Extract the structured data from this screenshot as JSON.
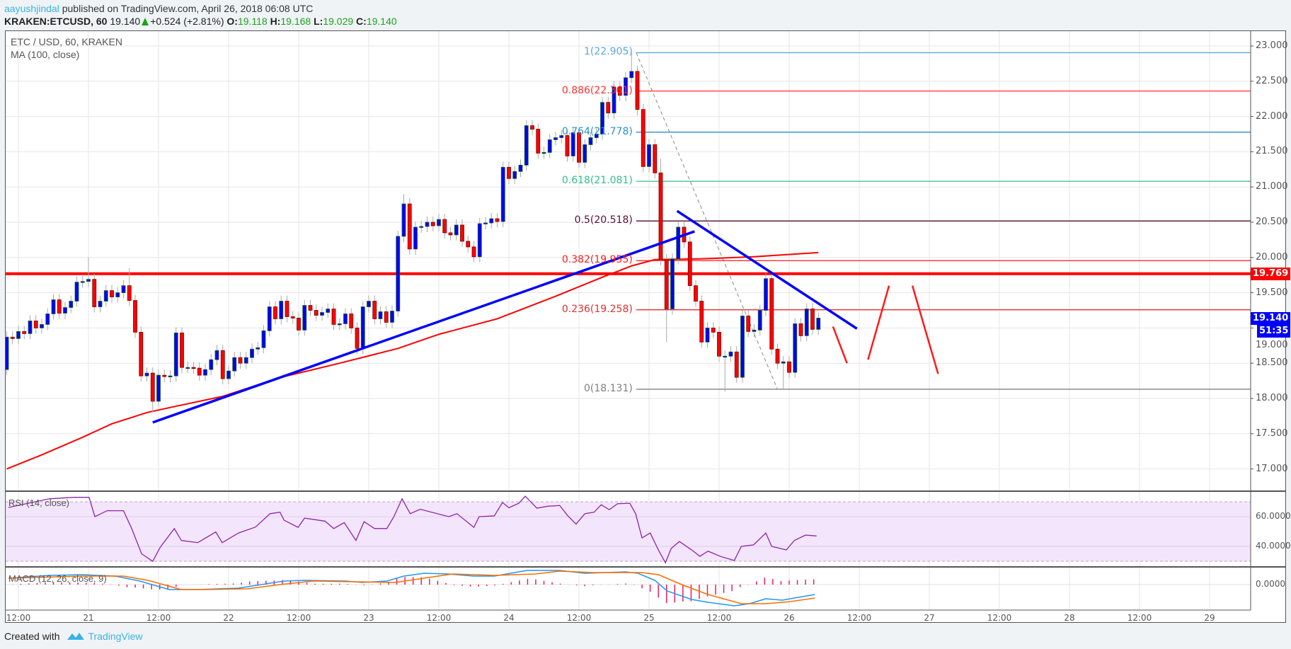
{
  "header": {
    "author": "aayushjindal",
    "published_text": "published on TradingView.com, April 26, 2018 06:08 UTC",
    "symbol": "KRAKEN:ETCUSD, 60",
    "last": "19.140",
    "change": "+0.524 (+2.81%)",
    "o_label": "O:",
    "o": "19.118",
    "h_label": "H:",
    "h": "19.168",
    "l_label": "L:",
    "l": "19.029",
    "c_label": "C:",
    "c": "19.140"
  },
  "legend": {
    "title": "ETC / USD, 60, KRAKEN",
    "ma": "MA (100, close)",
    "rsi": "RSI (14, close)",
    "macd": "MACD (12, 26, close, 9)"
  },
  "tags": {
    "resistance": "19.769",
    "last_price": "19.140",
    "countdown": "51:35"
  },
  "footer": {
    "created_with": "Created with",
    "brand": "TradingView"
  },
  "colors": {
    "up": "#0000ff",
    "down": "#ff0000",
    "ma": "#ff0000",
    "trend": "#0000ff",
    "rsi": "#8e24aa",
    "macd": "#2196f3",
    "signal": "#ff6d00",
    "hist": "#e91e63"
  },
  "chart_data": {
    "type": "candlestick",
    "time_unit": "hours from Apr 20 12:00",
    "price_axis": {
      "range": [
        16.6,
        23.2
      ],
      "ticks": [
        "23.000",
        "22.500",
        "22.000",
        "21.500",
        "21.000",
        "20.500",
        "20.000",
        "19.500",
        "19.000",
        "18.500",
        "18.000",
        "17.500",
        "17.000"
      ]
    },
    "x_ticks": [
      "12:00",
      "21",
      "12:00",
      "22",
      "12:00",
      "23",
      "12:00",
      "24",
      "12:00",
      "25",
      "12:00",
      "26",
      "12:00",
      "27",
      "12:00",
      "28",
      "12:00",
      "29"
    ],
    "candles": {
      "start_hour": -2,
      "first_open": 18.41,
      "closes": [
        18.87,
        18.85,
        18.95,
        18.92,
        19.1,
        19.0,
        19.05,
        19.2,
        19.4,
        19.21,
        19.29,
        19.38,
        19.65,
        19.66,
        19.69,
        19.3,
        19.38,
        19.53,
        19.44,
        19.5,
        19.6,
        19.39,
        18.94,
        18.32,
        18.36,
        17.96,
        18.33,
        18.31,
        18.32,
        18.93,
        18.44,
        18.44,
        18.43,
        18.33,
        18.41,
        18.55,
        18.68,
        18.28,
        18.39,
        18.58,
        18.5,
        18.58,
        18.7,
        18.72,
        18.96,
        19.3,
        19.13,
        19.38,
        19.16,
        19.14,
        18.97,
        19.32,
        19.25,
        19.18,
        19.22,
        19.27,
        19.05,
        19.06,
        19.2,
        19.0,
        18.71,
        19.3,
        19.38,
        19.13,
        19.23,
        19.08,
        19.24,
        20.3,
        20.76,
        20.12,
        20.43,
        20.44,
        20.5,
        20.45,
        20.54,
        20.35,
        20.32,
        20.46,
        20.23,
        20.15,
        20.01,
        20.48,
        20.49,
        20.55,
        20.51,
        21.28,
        21.12,
        21.22,
        21.31,
        21.87,
        21.82,
        21.48,
        21.49,
        21.67,
        21.7,
        21.73,
        21.44,
        21.77,
        21.35,
        21.6,
        21.7,
        21.75,
        22.2,
        22.05,
        22.42,
        22.3,
        22.55,
        22.64,
        22.1,
        21.29,
        21.6,
        21.2,
        19.97,
        19.27,
        19.98,
        20.43,
        20.22,
        19.6,
        19.38,
        18.8,
        19.0,
        18.94,
        18.6,
        18.6,
        18.66,
        18.3,
        19.17,
        18.95,
        18.97,
        19.25,
        19.7,
        18.7,
        18.5,
        18.52,
        18.37,
        19.06,
        18.89,
        19.27,
        18.98,
        19.14
      ],
      "high_overrides": {
        "12": 20.0,
        "19": 19.85,
        "66": 20.9,
        "105": 22.905,
        "110": 21.4
      },
      "low_overrides": {
        "23": 17.8,
        "111": 18.8,
        "121": 18.1,
        "131": 18.131
      }
    },
    "ma100": [
      [
        -2,
        17.0
      ],
      [
        4,
        17.2
      ],
      [
        11,
        17.45
      ],
      [
        16,
        17.64
      ],
      [
        22,
        17.8
      ],
      [
        27,
        17.89
      ],
      [
        35,
        18.03
      ],
      [
        45,
        18.3
      ],
      [
        55,
        18.5
      ],
      [
        65,
        18.71
      ],
      [
        72,
        18.91
      ],
      [
        82,
        19.13
      ],
      [
        92,
        19.45
      ],
      [
        100,
        19.72
      ],
      [
        105,
        19.88
      ],
      [
        109,
        19.97
      ],
      [
        117,
        19.98
      ],
      [
        126,
        20.01
      ],
      [
        137,
        20.07
      ]
    ],
    "horizontal_line": 19.769,
    "fibonacci": {
      "from": [
        105.8,
        22.905
      ],
      "to": [
        130,
        18.131
      ],
      "levels": [
        {
          "label": "1(22.905)",
          "price": 22.905,
          "color": "#5aa8d8"
        },
        {
          "label": "0.886(22.361)",
          "price": 22.361,
          "color": "#ff3030"
        },
        {
          "label": "0.764(21.778)",
          "price": 21.778,
          "color": "#2b8fd0"
        },
        {
          "label": "0.618(21.081)",
          "price": 21.081,
          "color": "#2fbf8a"
        },
        {
          "label": "0.5(20.518)",
          "price": 20.518,
          "color": "#5a1030"
        },
        {
          "label": "0.382(19.955)",
          "price": 19.955,
          "color": "#ff1a1a"
        },
        {
          "label": "0.236(19.258)",
          "price": 19.258,
          "color": "#e03030"
        },
        {
          "label": "0(18.131)",
          "price": 18.131,
          "color": "#808080"
        }
      ]
    },
    "trendlines": [
      {
        "name": "ascending-support",
        "points": [
          [
            23,
            17.66
          ],
          [
            115.8,
            20.37
          ]
        ]
      },
      {
        "name": "descending-resistance",
        "points": [
          [
            112.8,
            20.66
          ],
          [
            143.6,
            18.99
          ]
        ]
      }
    ],
    "projection_lines": [
      [
        [
          139.5,
          19.02
        ],
        [
          141.9,
          18.5
        ]
      ],
      [
        [
          145.5,
          18.55
        ],
        [
          149.1,
          19.6
        ]
      ],
      [
        [
          153.1,
          19.6
        ],
        [
          157.5,
          18.35
        ]
      ]
    ],
    "rsi": {
      "ticks": [
        "60.0000",
        "40.0000"
      ],
      "bands": [
        30,
        70
      ],
      "points": [
        [
          -1.7,
          66.2
        ],
        [
          5.3,
          72
        ],
        [
          9.5,
          73
        ],
        [
          12.1,
          73
        ],
        [
          13.1,
          60
        ],
        [
          15.2,
          64
        ],
        [
          18,
          64
        ],
        [
          19.4,
          52
        ],
        [
          21.1,
          35
        ],
        [
          23,
          30
        ],
        [
          24.3,
          39.5
        ],
        [
          26.7,
          52
        ],
        [
          27.9,
          44
        ],
        [
          30.7,
          42.5
        ],
        [
          33.8,
          49.7
        ],
        [
          34.9,
          42.5
        ],
        [
          37.7,
          49
        ],
        [
          40.6,
          53
        ],
        [
          43.1,
          62
        ],
        [
          44.8,
          63
        ],
        [
          45.5,
          57.6
        ],
        [
          47.9,
          52.8
        ],
        [
          49,
          59
        ],
        [
          52.5,
          57
        ],
        [
          54,
          52
        ],
        [
          55.8,
          56
        ],
        [
          57.8,
          44
        ],
        [
          59.2,
          56.6
        ],
        [
          61,
          52
        ],
        [
          63.1,
          52
        ],
        [
          64.3,
          60
        ],
        [
          65.7,
          72
        ],
        [
          67.1,
          62
        ],
        [
          68.8,
          65
        ],
        [
          73.7,
          60
        ],
        [
          75.1,
          62
        ],
        [
          78,
          52.8
        ],
        [
          78.9,
          60
        ],
        [
          81.5,
          60.5
        ],
        [
          82.9,
          69.5
        ],
        [
          84,
          66
        ],
        [
          85.7,
          69
        ],
        [
          86.8,
          73.8
        ],
        [
          88.8,
          65.7
        ],
        [
          90.6,
          67
        ],
        [
          92.7,
          67.5
        ],
        [
          94.1,
          60.5
        ],
        [
          95.5,
          55
        ],
        [
          97,
          62
        ],
        [
          98.6,
          63
        ],
        [
          99.8,
          68
        ],
        [
          101.2,
          64.7
        ],
        [
          102.6,
          68.7
        ],
        [
          104.7,
          69
        ],
        [
          105.7,
          62
        ],
        [
          106.8,
          45.7
        ],
        [
          108.2,
          49
        ],
        [
          109.6,
          37.6
        ],
        [
          110.8,
          29
        ],
        [
          111.8,
          38.6
        ],
        [
          113.2,
          43.3
        ],
        [
          115.3,
          37.6
        ],
        [
          116.7,
          33.3
        ],
        [
          118.1,
          36.8
        ],
        [
          120.2,
          33.3
        ],
        [
          122.6,
          30.5
        ],
        [
          123.8,
          40
        ],
        [
          125.9,
          41
        ],
        [
          128,
          49
        ],
        [
          129,
          40
        ],
        [
          131.5,
          37.6
        ],
        [
          132.9,
          44
        ],
        [
          134.8,
          47.6
        ],
        [
          136.7,
          47
        ]
      ]
    },
    "macd": {
      "ticks": [
        "0.0000"
      ],
      "macd": [
        [
          -1.7,
          0.09
        ],
        [
          5.3,
          0.13
        ],
        [
          11,
          0.14
        ],
        [
          16.6,
          0.12
        ],
        [
          20.8,
          0.05
        ],
        [
          25.8,
          -0.07
        ],
        [
          30.7,
          -0.07
        ],
        [
          37.7,
          -0.05
        ],
        [
          45.5,
          0.05
        ],
        [
          49,
          0.06
        ],
        [
          56.1,
          0.05
        ],
        [
          58.9,
          0.03
        ],
        [
          63.1,
          0.05
        ],
        [
          66,
          0.12
        ],
        [
          69.5,
          0.16
        ],
        [
          73.7,
          0.15
        ],
        [
          78,
          0.12
        ],
        [
          81.5,
          0.12
        ],
        [
          87.1,
          0.2
        ],
        [
          92.7,
          0.2
        ],
        [
          97,
          0.16
        ],
        [
          104,
          0.18
        ],
        [
          106.1,
          0.16
        ],
        [
          109,
          0.06
        ],
        [
          111.1,
          -0.09
        ],
        [
          115.3,
          -0.21
        ],
        [
          118.1,
          -0.25
        ],
        [
          122.6,
          -0.3
        ],
        [
          125.2,
          -0.27
        ],
        [
          128,
          -0.2
        ],
        [
          130.8,
          -0.22
        ],
        [
          133.6,
          -0.18
        ],
        [
          136.4,
          -0.14
        ]
      ],
      "signal": [
        [
          -1.7,
          0.09
        ],
        [
          11,
          0.12
        ],
        [
          18,
          0.12
        ],
        [
          22.2,
          0.06
        ],
        [
          27.9,
          -0.07
        ],
        [
          32.1,
          -0.07
        ],
        [
          39.2,
          -0.06
        ],
        [
          44.8,
          0.0
        ],
        [
          50.4,
          0.05
        ],
        [
          57.5,
          0.04
        ],
        [
          64.5,
          0.03
        ],
        [
          70.2,
          0.1
        ],
        [
          74.4,
          0.15
        ],
        [
          81.5,
          0.13
        ],
        [
          88.5,
          0.15
        ],
        [
          92.7,
          0.19
        ],
        [
          98.4,
          0.17
        ],
        [
          106.8,
          0.17
        ],
        [
          109.6,
          0.14
        ],
        [
          113.9,
          -0.01
        ],
        [
          118.1,
          -0.14
        ],
        [
          123.8,
          -0.27
        ],
        [
          128,
          -0.27
        ],
        [
          132.2,
          -0.24
        ],
        [
          136.4,
          -0.19
        ]
      ]
    }
  }
}
